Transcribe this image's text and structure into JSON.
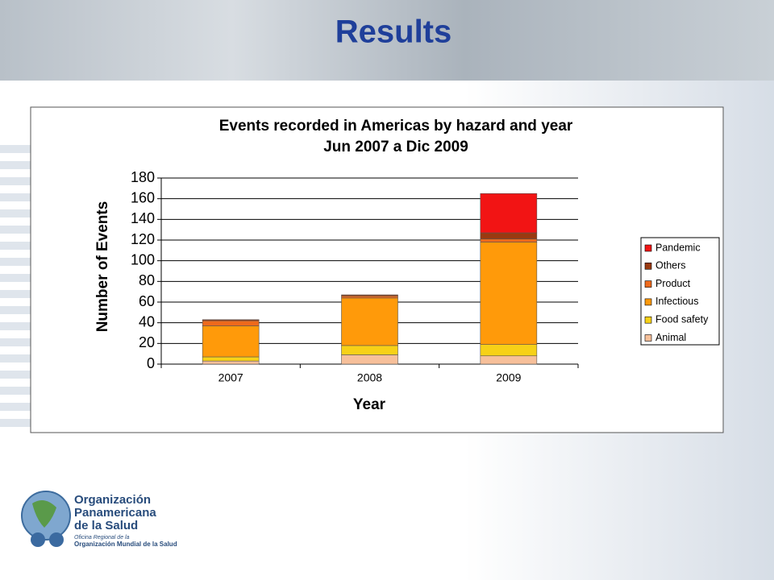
{
  "slide_title": "Results",
  "organization": {
    "name_lines": [
      "Organización",
      "Panamericana",
      "de la Salud"
    ],
    "sub_lines": [
      "Oficina Regional de la",
      "Organización Mundial de la Salud"
    ]
  },
  "chart_data": {
    "type": "stacked_bar",
    "title": "Events recorded in Americas by hazard and year",
    "subtitle": "Jun 2007 a Dic 2009",
    "x_label": "Year",
    "y_label": "Number of Events",
    "categories": [
      "2007",
      "2008",
      "2009"
    ],
    "series": [
      {
        "name": "Animal",
        "color": "#f7c09a",
        "values": [
          3,
          9,
          8
        ]
      },
      {
        "name": "Food safety",
        "color": "#f7d117",
        "values": [
          4,
          9,
          11
        ]
      },
      {
        "name": "Infectious",
        "color": "#ff9a0a",
        "values": [
          30,
          46,
          99
        ]
      },
      {
        "name": "Product",
        "color": "#ee6a1c",
        "values": [
          5,
          2,
          3
        ]
      },
      {
        "name": "Others",
        "color": "#9a3a10",
        "values": [
          1,
          1,
          6
        ]
      },
      {
        "name": "Pandemic",
        "color": "#f21414",
        "values": [
          0,
          0,
          38
        ]
      }
    ],
    "ylim": [
      0,
      180
    ],
    "yticks": [
      0,
      20,
      40,
      60,
      80,
      100,
      120,
      140,
      160,
      180
    ],
    "grid": true,
    "legend": "right"
  }
}
